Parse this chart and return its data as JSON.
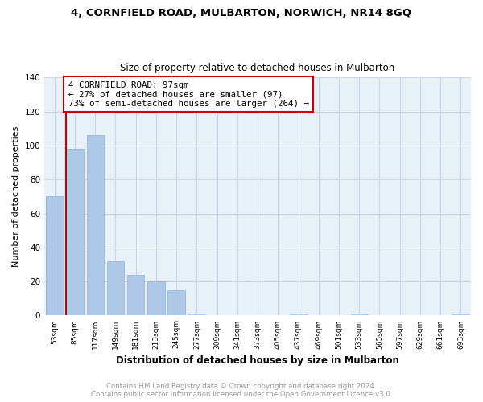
{
  "title1": "4, CORNFIELD ROAD, MULBARTON, NORWICH, NR14 8GQ",
  "title2": "Size of property relative to detached houses in Mulbarton",
  "xlabel": "Distribution of detached houses by size in Mulbarton",
  "ylabel": "Number of detached properties",
  "bin_labels": [
    "53sqm",
    "85sqm",
    "117sqm",
    "149sqm",
    "181sqm",
    "213sqm",
    "245sqm",
    "277sqm",
    "309sqm",
    "341sqm",
    "373sqm",
    "405sqm",
    "437sqm",
    "469sqm",
    "501sqm",
    "533sqm",
    "565sqm",
    "597sqm",
    "629sqm",
    "661sqm",
    "693sqm"
  ],
  "bar_values": [
    70,
    98,
    106,
    32,
    24,
    20,
    15,
    1,
    0,
    0,
    0,
    0,
    1,
    0,
    0,
    1,
    0,
    0,
    0,
    0,
    1
  ],
  "bar_color": "#aec8e8",
  "bar_edge_color": "#8db4d8",
  "property_line_color": "#cc0000",
  "annotation_line1": "4 CORNFIELD ROAD: 97sqm",
  "annotation_line2": "← 27% of detached houses are smaller (97)",
  "annotation_line3": "73% of semi-detached houses are larger (264) →",
  "annotation_box_color": "#ffffff",
  "annotation_box_edge": "#cc0000",
  "ylim": [
    0,
    140
  ],
  "yticks": [
    0,
    20,
    40,
    60,
    80,
    100,
    120,
    140
  ],
  "footer1": "Contains HM Land Registry data © Crown copyright and database right 2024.",
  "footer2": "Contains public sector information licensed under the Open Government Licence v3.0.",
  "footer_color": "#999999",
  "bg_color": "#ffffff",
  "grid_color": "#c8d8e8",
  "title1_fontsize": 9.5,
  "title2_fontsize": 8.5
}
